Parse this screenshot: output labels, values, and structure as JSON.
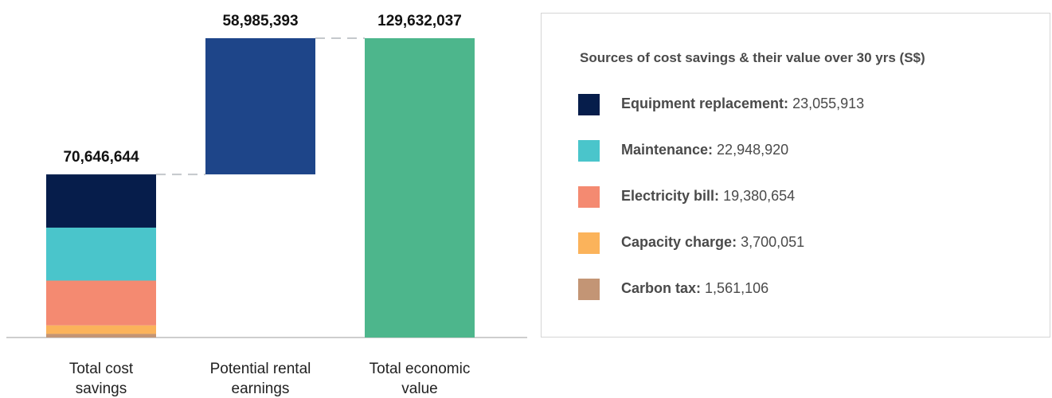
{
  "chart_data": {
    "type": "bar",
    "subtype": "waterfall-stacked",
    "categories": [
      "Total cost savings",
      "Potential rental earnings",
      "Total economic value"
    ],
    "category_labels": [
      [
        "Total cost",
        "savings"
      ],
      [
        "Potential rental",
        "earnings"
      ],
      [
        "Total economic",
        "value"
      ]
    ],
    "bar_labels": [
      "70,646,644",
      "58,985,393",
      "129,632,037"
    ],
    "totals": [
      70646644,
      58985393,
      129632037
    ],
    "ylim": [
      0,
      129632037
    ],
    "grid": false,
    "connectors": true,
    "legend_position": "right",
    "series": [
      {
        "name": "Equipment replacement",
        "value_label": "23,055,913",
        "value": 23055913,
        "color": "#061d4b",
        "bar_index": 0
      },
      {
        "name": "Maintenance",
        "value_label": "22,948,920",
        "value": 22948920,
        "color": "#4ac5cb",
        "bar_index": 0
      },
      {
        "name": "Electricity bill",
        "value_label": "19,380,654",
        "value": 19380654,
        "color": "#f48a71",
        "bar_index": 0
      },
      {
        "name": "Capacity charge",
        "value_label": "3,700,051",
        "value": 3700051,
        "color": "#fbb35b",
        "bar_index": 0
      },
      {
        "name": "Carbon tax",
        "value_label": "1,561,106",
        "value": 1561106,
        "color": "#c39575",
        "bar_index": 0
      }
    ],
    "rental_bar": {
      "value": 58985393,
      "color": "#1e4589"
    },
    "total_bar": {
      "value": 129632037,
      "color": "#4db68c"
    }
  },
  "legend": {
    "title": "Sources of cost savings & their value over 30 yrs (S$)"
  }
}
